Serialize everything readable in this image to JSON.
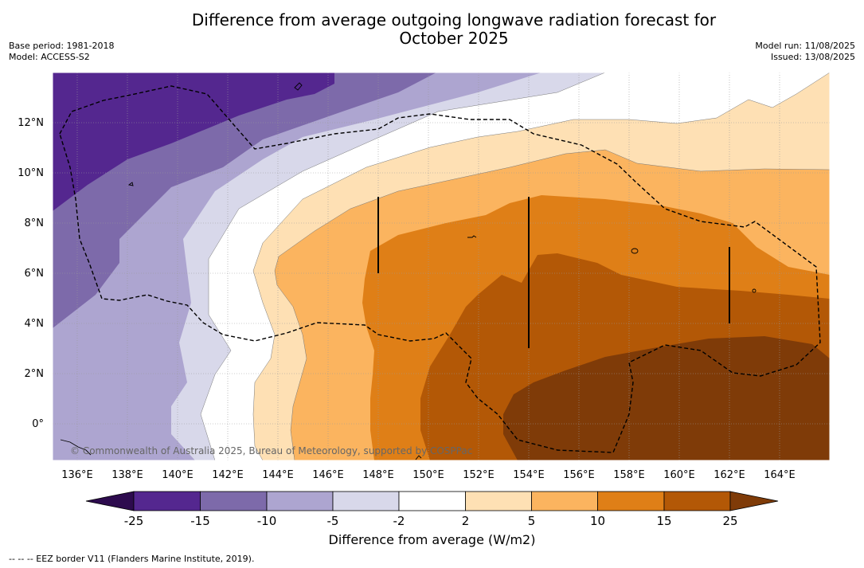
{
  "title_line1": "Difference from average outgoing longwave radiation forecast for",
  "title_line2": "October 2025",
  "base_period": "Base period: 1981-2018",
  "model": "Model: ACCESS-S2",
  "model_run": "Model run: 11/08/2025",
  "issued": "Issued: 13/08/2025",
  "copyright": "© Commonwealth of Australia 2025, Bureau of Meteorology, supported by COSPPac",
  "lon_labels": [
    "136°E",
    "138°E",
    "140°E",
    "142°E",
    "144°E",
    "146°E",
    "148°E",
    "150°E",
    "152°E",
    "154°E",
    "156°E",
    "158°E",
    "160°E",
    "162°E",
    "164°E"
  ],
  "lat_labels": [
    "12°N",
    "10°N",
    "8°N",
    "6°N",
    "4°N",
    "2°N",
    "0°"
  ],
  "colorbar": {
    "label": "Difference from average (W/m2)",
    "ticks": [
      "-25",
      "-15",
      "-10",
      "-5",
      "-2",
      "2",
      "5",
      "10",
      "15",
      "25"
    ],
    "colors": {
      "extend_low": "#2d0b4e",
      "b1": "#54278f",
      "b2": "#7d6aaa",
      "b3": "#ada5d0",
      "b4": "#d8d8ea",
      "b5": "#ffffff",
      "b6": "#fee0b4",
      "b7": "#fbb45f",
      "b8": "#df7f17",
      "b9": "#b35806",
      "extend_high": "#7f3b08"
    }
  },
  "footnote": "-- -- -- EEZ border V11 (Flanders Marine Institute, 2019)."
}
